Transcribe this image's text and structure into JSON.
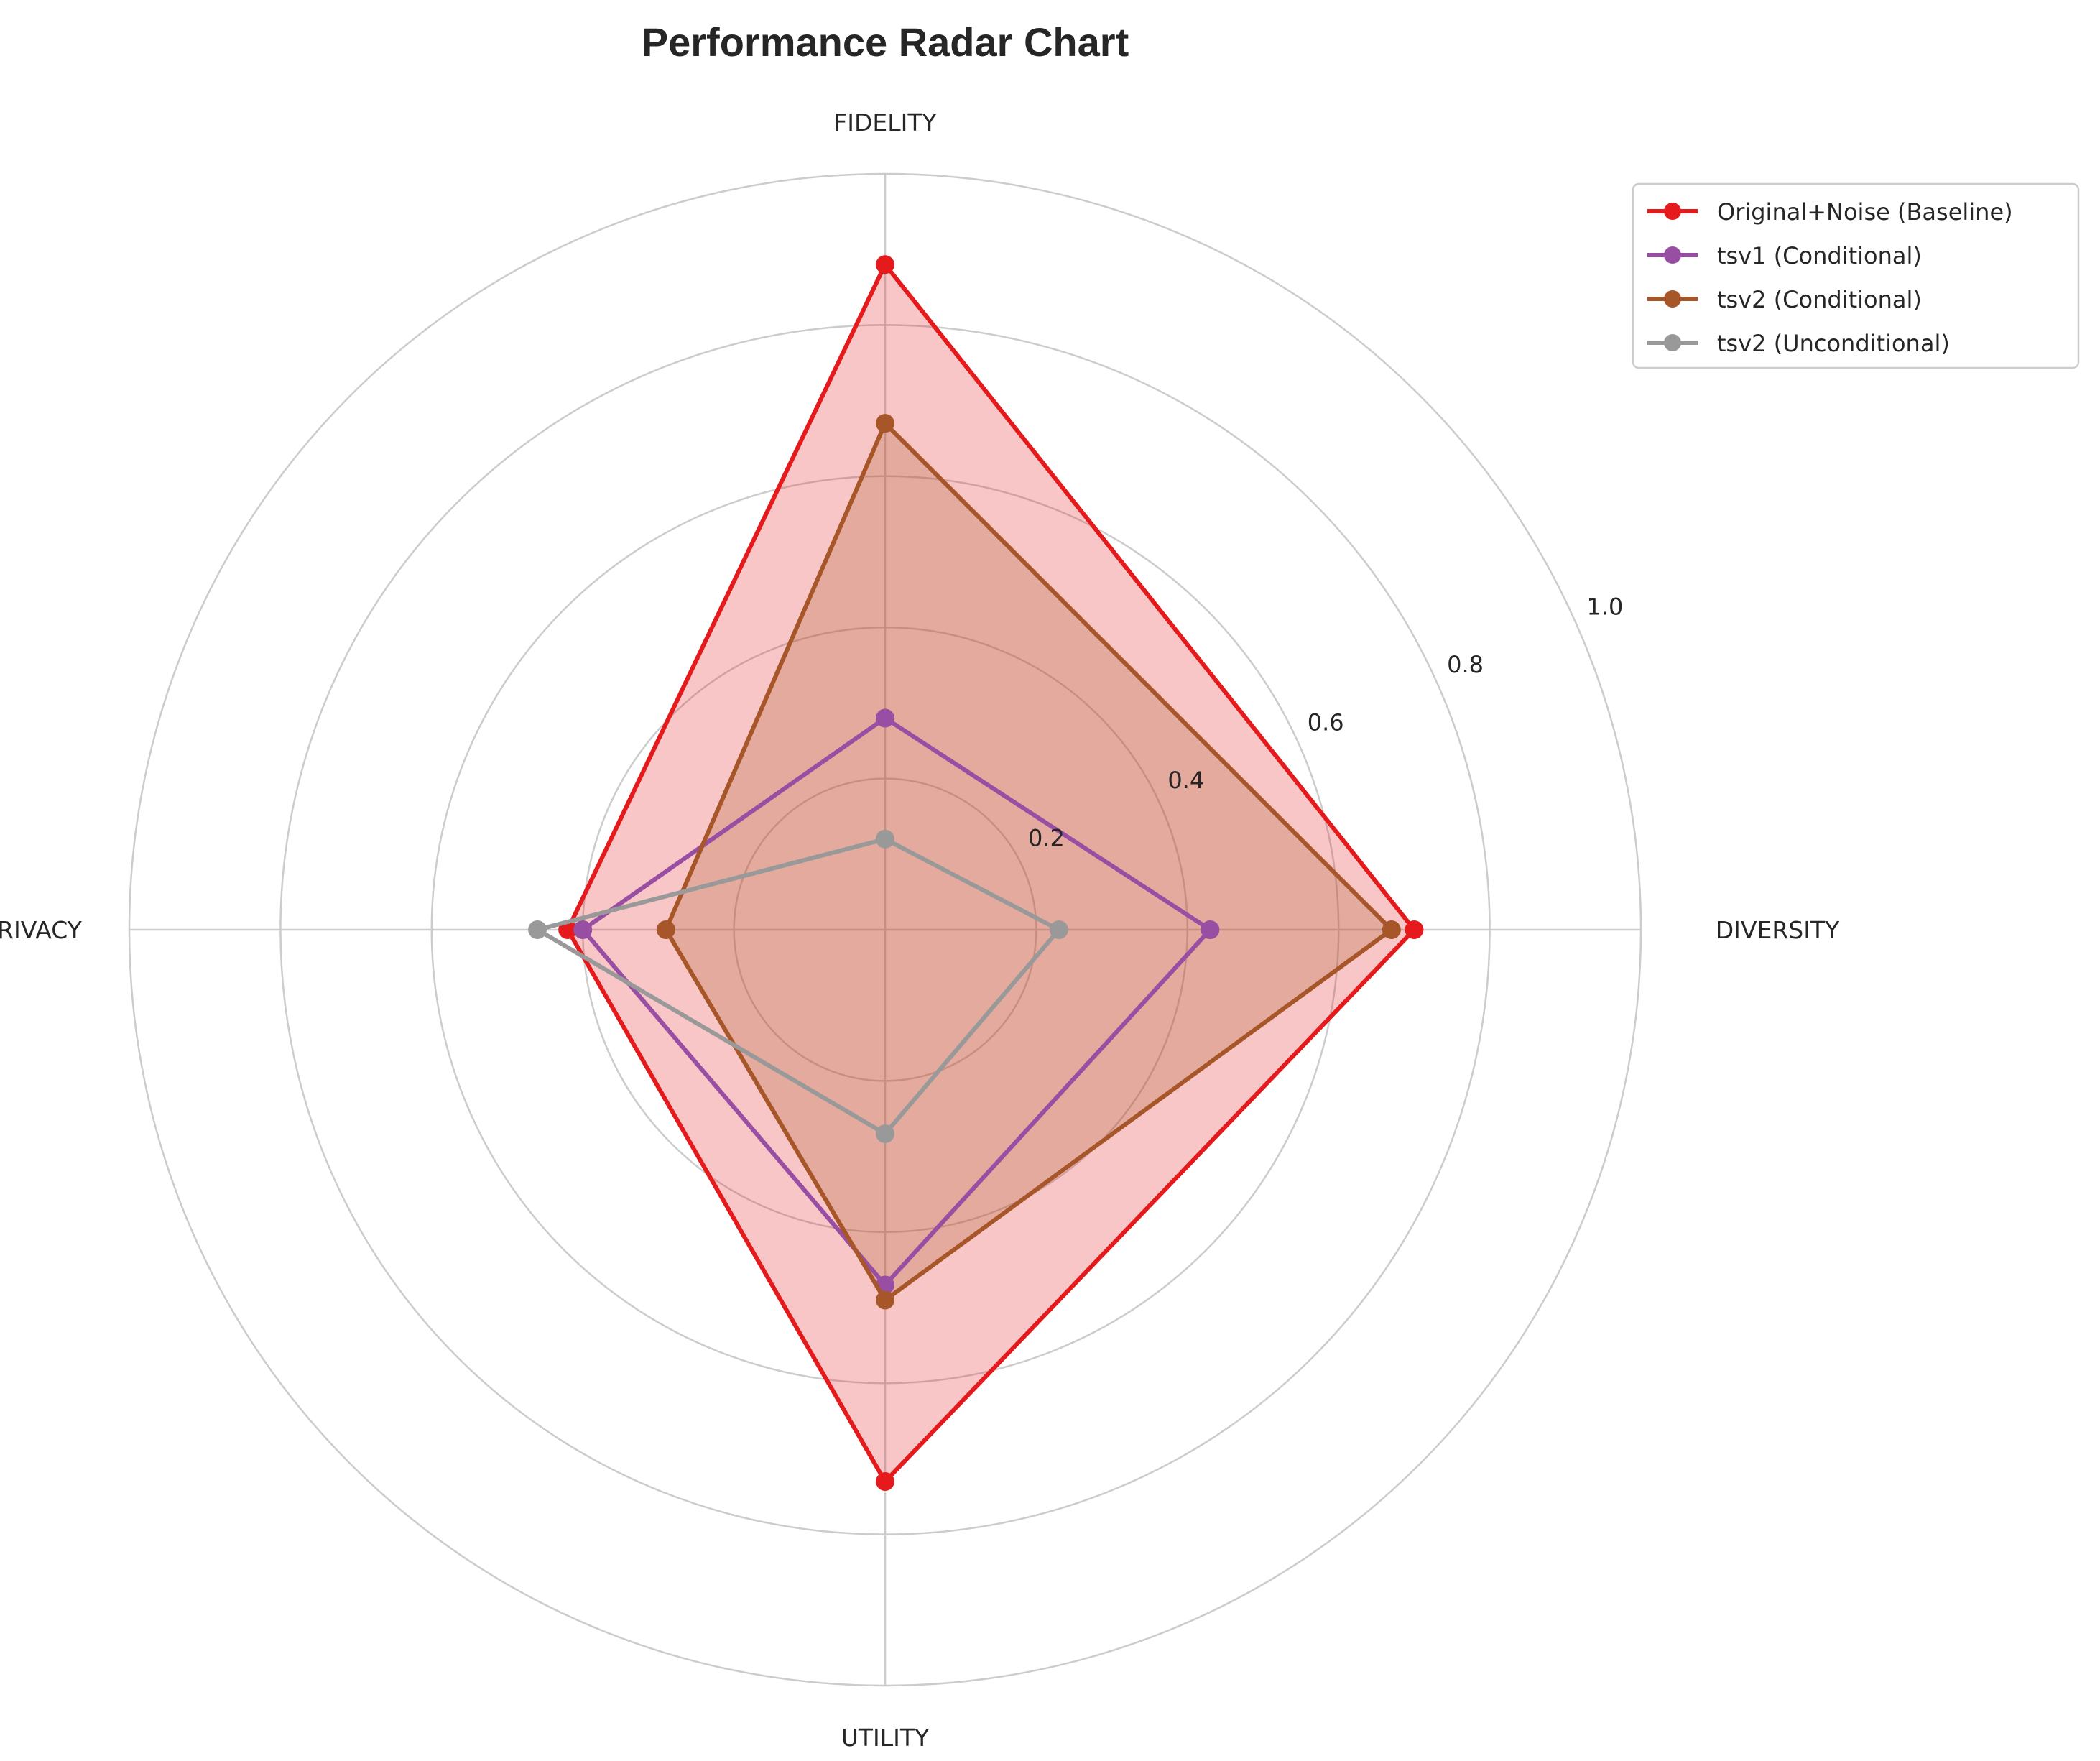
{
  "chart_data": {
    "type": "radar",
    "title": "Performance Radar Chart",
    "axes": [
      "FIDELITY",
      "DIVERSITY",
      "UTILITY",
      "PRIVACY"
    ],
    "rlim": [
      0,
      1.0
    ],
    "rticks": [
      "0.2",
      "0.4",
      "0.6",
      "0.8",
      "1.0"
    ],
    "rtick_values": [
      0.2,
      0.4,
      0.6,
      0.8,
      1.0
    ],
    "grid": true,
    "legend_position": "top-right",
    "series": [
      {
        "name": "Original+Noise (Baseline)",
        "color": "#e41a1c",
        "filled": true,
        "values": [
          0.88,
          0.7,
          0.73,
          0.42
        ]
      },
      {
        "name": "tsv1 (Conditional)",
        "color": "#984ea3",
        "filled": false,
        "values": [
          0.28,
          0.43,
          0.47,
          0.4
        ]
      },
      {
        "name": "tsv2 (Conditional)",
        "color": "#a65628",
        "filled": true,
        "values": [
          0.67,
          0.67,
          0.49,
          0.29
        ]
      },
      {
        "name": "tsv2 (Unconditional)",
        "color": "#999999",
        "filled": false,
        "values": [
          0.12,
          0.23,
          0.27,
          0.46
        ]
      }
    ]
  }
}
